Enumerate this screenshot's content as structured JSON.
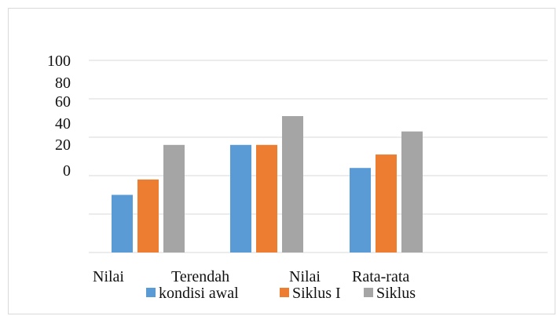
{
  "chart_data": {
    "type": "bar",
    "categories": [
      "Nilai",
      "Terendah",
      "Nilai"
    ],
    "extra_category_label": "Rata-rata",
    "series": [
      {
        "name": "kondisi awal",
        "color": "#5b9bd5",
        "values": [
          30,
          56,
          44
        ]
      },
      {
        "name": "Siklus I",
        "color": "#ed7d31",
        "values": [
          38,
          56,
          51
        ]
      },
      {
        "name": "Siklus",
        "color": "#a5a5a5",
        "values": [
          56,
          71,
          63
        ]
      }
    ],
    "y_tick_labels": [
      "100",
      "80",
      "60",
      "40",
      "20",
      "0"
    ],
    "ylim": [
      0,
      100
    ],
    "grid": true,
    "legend": "bottom"
  }
}
